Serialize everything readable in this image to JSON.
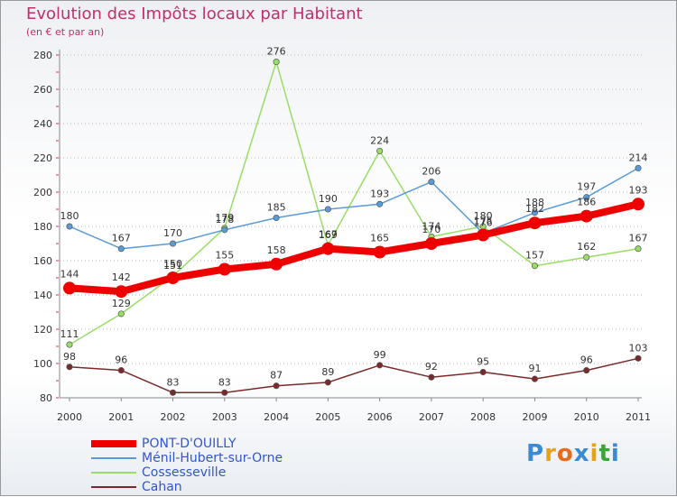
{
  "chart_data": {
    "type": "line",
    "title": "Evolution des Impôts locaux par Habitant",
    "subtitle": "(en € et par an)",
    "xlabel": "",
    "ylabel": "",
    "x": [
      "2000",
      "2001",
      "2002",
      "2003",
      "2004",
      "2005",
      "2006",
      "2007",
      "2008",
      "2009",
      "2010",
      "2011"
    ],
    "ylim": [
      80,
      280
    ],
    "yticks": [
      "80",
      "100",
      "120",
      "140",
      "160",
      "180",
      "200",
      "220",
      "240",
      "260",
      "280"
    ],
    "grid": "horizontal dotted",
    "legend_position": "bottom-left",
    "series": [
      {
        "name": "PONT-D'OUILLY",
        "color": "#ee0000",
        "values": [
          144,
          142,
          150,
          155,
          158,
          167,
          165,
          170,
          175,
          182,
          186,
          193
        ],
        "labels": [
          "144",
          "142",
          "150",
          "155",
          "158",
          "167",
          "165",
          "170",
          "175",
          "182",
          "186",
          "193"
        ]
      },
      {
        "name": "Ménil-Hubert-sur-Orne",
        "color": "#5b9bd5",
        "values": [
          180,
          167,
          170,
          178,
          185,
          190,
          193,
          206,
          176,
          188,
          197,
          214
        ],
        "labels": [
          "180",
          "167",
          "170",
          "178",
          "185",
          "190",
          "193",
          "206",
          "176",
          "188",
          "197",
          "214"
        ]
      },
      {
        "name": "Cossesseville",
        "color": "#99dd66",
        "values": [
          111,
          129,
          151,
          179,
          276,
          169,
          224,
          174,
          180,
          157,
          162,
          167
        ],
        "labels": [
          "111",
          "129",
          "151",
          "179",
          "276",
          "169",
          "224",
          "174",
          "180",
          "157",
          "162",
          "167"
        ]
      },
      {
        "name": "Cahan",
        "color": "#7a2a2a",
        "values": [
          98,
          96,
          83,
          83,
          87,
          89,
          99,
          92,
          95,
          91,
          96,
          103
        ],
        "labels": [
          "98",
          "96",
          "83",
          "83",
          "87",
          "89",
          "99",
          "92",
          "95",
          "91",
          "96",
          "103"
        ]
      }
    ]
  },
  "logo": {
    "letters": [
      "P",
      "r",
      "o",
      "x",
      "i",
      "t",
      "i"
    ],
    "colors": [
      "#3a8ad6",
      "#e8a21a",
      "#e86a1a",
      "#3a8ad6",
      "#e8a21a",
      "#3aa63a",
      "#3a8ad6"
    ]
  }
}
